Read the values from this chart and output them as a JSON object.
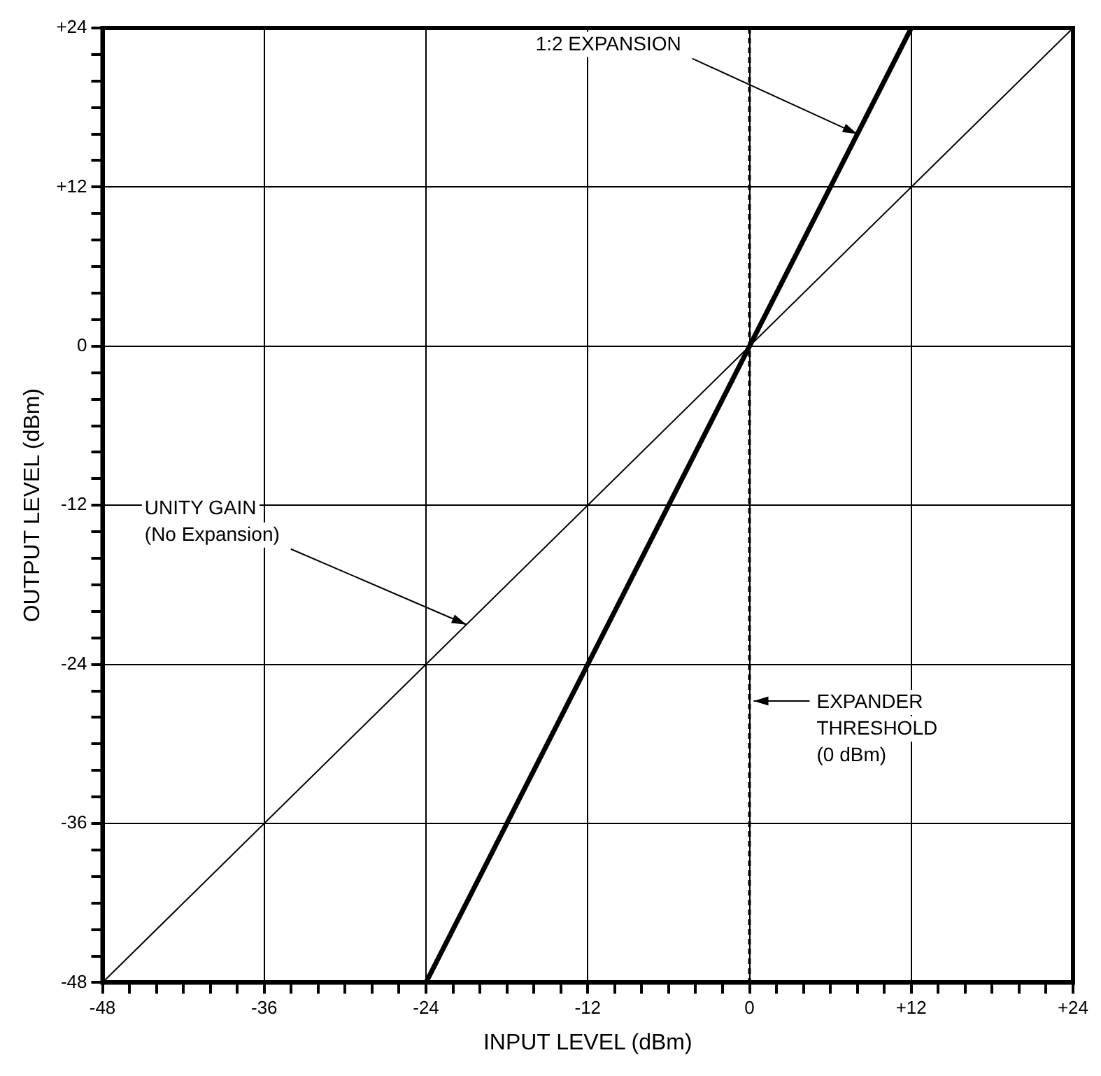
{
  "chart_data": {
    "type": "line",
    "xlabel": "INPUT LEVEL (dBm)",
    "ylabel": "OUTPUT LEVEL (dBm)",
    "series": [
      {
        "color": "#000000",
        "x": [
          -48,
          24
        ],
        "values": [
          -48,
          24
        ]
      },
      {
        "color": "#000000",
        "x": [
          -24,
          12
        ],
        "values": [
          -48,
          24
        ]
      }
    ],
    "xlim": [
      -48,
      24
    ],
    "ylim": [
      -48,
      24
    ],
    "xticks": [
      -48,
      {
        "value": -46,
        "label": null
      },
      {
        "value": -44,
        "label": null
      },
      {
        "value": -42,
        "label": null
      },
      {
        "value": -40,
        "label": null
      },
      {
        "value": -38,
        "label": null
      },
      -36,
      {
        "value": -34,
        "label": null
      },
      {
        "value": -32,
        "label": null
      },
      {
        "value": -30,
        "label": null
      },
      {
        "value": -28,
        "label": null
      },
      {
        "value": -26,
        "label": null
      },
      -24,
      {
        "value": -22,
        "label": null
      },
      {
        "value": -20,
        "label": null
      },
      {
        "value": -18,
        "label": null
      },
      {
        "value": -16,
        "label": null
      },
      {
        "value": -14,
        "label": null
      },
      -12,
      {
        "value": -10,
        "label": null
      },
      {
        "value": -8,
        "label": null
      },
      {
        "value": -6,
        "label": null
      },
      {
        "value": -4,
        "label": null
      },
      {
        "value": -2,
        "label": null
      },
      0,
      {
        "value": 2,
        "label": null
      },
      {
        "value": 4,
        "label": null
      },
      {
        "value": 6,
        "label": null
      },
      {
        "value": 8,
        "label": null
      },
      {
        "value": 10,
        "label": null
      },
      {
        "value": 12,
        "label": "+12"
      },
      {
        "value": 14,
        "label": null
      },
      {
        "value": 16,
        "label": null
      },
      {
        "value": 18,
        "label": null
      },
      {
        "value": 20,
        "label": null
      },
      {
        "value": 22,
        "label": null
      },
      {
        "value": 24,
        "label": "+24"
      }
    ],
    "yticks": [
      -48,
      {
        "value": -46,
        "label": null
      },
      {
        "value": -44,
        "label": null
      },
      {
        "value": -42,
        "label": null
      },
      {
        "value": -40,
        "label": null
      },
      {
        "value": -38,
        "label": null
      },
      -36,
      {
        "value": -34,
        "label": null
      },
      {
        "value": -32,
        "label": null
      },
      {
        "value": -30,
        "label": null
      },
      {
        "value": -28,
        "label": null
      },
      {
        "value": -26,
        "label": null
      },
      -24,
      {
        "value": -22,
        "label": null
      },
      {
        "value": -20,
        "label": null
      },
      {
        "value": -18,
        "label": null
      },
      {
        "value": -16,
        "label": null
      },
      {
        "value": -14,
        "label": null
      },
      -12,
      {
        "value": -10,
        "label": null
      },
      {
        "value": -8,
        "label": null
      },
      {
        "value": -6,
        "label": null
      },
      {
        "value": -4,
        "label": null
      },
      {
        "value": -2,
        "label": null
      },
      0,
      {
        "value": 2,
        "label": null
      },
      {
        "value": 4,
        "label": null
      },
      {
        "value": 6,
        "label": null
      },
      {
        "value": 8,
        "label": null
      },
      {
        "value": 10,
        "label": null
      },
      {
        "value": 12,
        "label": "+12"
      },
      {
        "value": 14,
        "label": null
      },
      {
        "value": 16,
        "label": null
      },
      {
        "value": 18,
        "label": null
      },
      {
        "value": 20,
        "label": null
      },
      {
        "value": 22,
        "label": null
      },
      {
        "value": 24,
        "label": "+24"
      }
    ],
    "grid": true,
    "legend": false,
    "marker": "none",
    "ref_lines": [
      {
        "axis": "x",
        "value": 0,
        "label": "EXPANDER\nTHRESHOLD\n(0 dBm)",
        "color": "#000000",
        "line_style": "dashed"
      }
    ],
    "annotations": [
      {
        "text": "1:2 EXPANSION",
        "x": 8,
        "y": 16
      },
      {
        "text": "UNITY GAIN\n(No Expansion)",
        "x": -21,
        "y": -21
      }
    ]
  }
}
